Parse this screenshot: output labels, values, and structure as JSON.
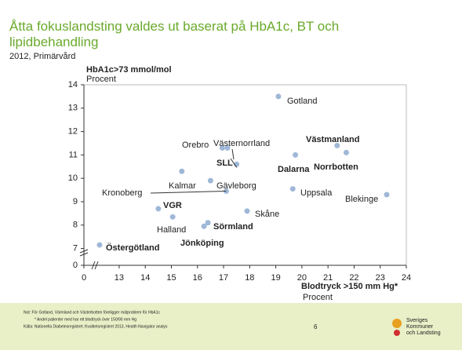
{
  "chart_data": {
    "type": "scatter",
    "title": "Åtta fokuslandsting valdes ut baserat på HbA1c,  BT och lipidbehandling",
    "subtitle": "2012, Primärvård",
    "y_label": "HbA1c>73 mmol/mol",
    "y_unit": "Procent",
    "x_label": "Blodtryck >150 mm Hg*",
    "x_unit": "Procent",
    "x_axis_break": true,
    "y_axis_break": true,
    "xlim": [
      11.65,
      24
    ],
    "ylim": [
      6.28,
      14
    ],
    "xticks": [
      0,
      13,
      14,
      15,
      16,
      17,
      18,
      19,
      20,
      21,
      22,
      23,
      24
    ],
    "yticks": [
      0,
      7,
      8,
      9,
      10,
      11,
      12,
      13,
      14
    ],
    "color": "#9fb8d8",
    "labels": [
      "Gotland",
      "Västmanland",
      "Norrbotten",
      "Dalarna",
      "Orebro",
      "Västernorrland",
      "SLL",
      "Kalmar",
      "Gävleborg",
      "Kronoberg",
      "Uppsala",
      "Blekinge",
      "VGR",
      "Skåne",
      "Halland",
      "Sörmland",
      "Jönköping",
      "Östergötland"
    ],
    "bold": [
      false,
      true,
      true,
      true,
      false,
      false,
      true,
      false,
      false,
      false,
      false,
      false,
      true,
      false,
      false,
      true,
      true,
      true
    ],
    "x": [
      19.1,
      21.35,
      21.7,
      19.75,
      16.95,
      17.15,
      17.5,
      15.4,
      16.5,
      17.1,
      19.65,
      23.25,
      14.5,
      17.9,
      15.05,
      16.4,
      16.25,
      12.25
    ],
    "y": [
      13.5,
      11.4,
      11.1,
      11.0,
      11.3,
      11.3,
      10.6,
      10.3,
      9.9,
      9.45,
      9.55,
      9.3,
      8.7,
      8.6,
      8.35,
      8.1,
      7.95,
      7.15
    ]
  },
  "footer": {
    "notes": [
      "Not:   För Gotland, Värmland och Västerbotten föreligger mätproblem för HbA1c",
      "*   Andel patienter med har ett blodtryck över 150/90 mm Hg",
      "Källa:   Nationella Diabetesregistret; Kvalitetsregistret 2013, Health Navigator analys"
    ],
    "page": "6",
    "logo": [
      "Sveriges",
      "Kommuner",
      "och Landsting"
    ]
  }
}
